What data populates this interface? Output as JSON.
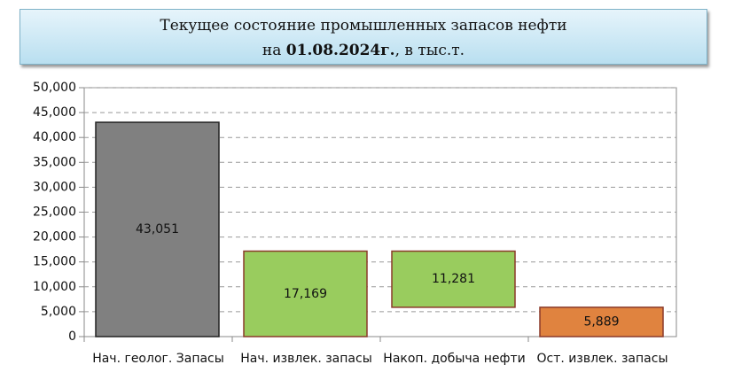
{
  "chart_data": {
    "type": "waterfall",
    "title": {
      "line1": "Текущее состояние промышленных запасов нефти",
      "prefix": "на",
      "date": "01.08.2024г.",
      "suffix": ", в тыс.т."
    },
    "categories": [
      "Нач. геолог. Запасы",
      "Нач. извлек. запасы",
      "Накоп. добыча нефти",
      "Ост. извлек. запасы"
    ],
    "measures": [
      "total",
      "total",
      "decrease",
      "total"
    ],
    "values": [
      43051,
      17169,
      11281,
      5889
    ],
    "value_labels": [
      "43,051",
      "17,169",
      "11,281",
      "5,889"
    ],
    "colors": [
      "#808080",
      "#99cc5e",
      "#99cc5e",
      "#e0833f"
    ],
    "edge_colors": [
      "#222222",
      "#8b3a2a",
      "#8b3a2a",
      "#8b3a2a"
    ],
    "ylim": [
      0,
      50000
    ],
    "yticks": [
      0,
      {
        "value": 5000,
        "label": "5,000"
      },
      {
        "value": 10000,
        "label": "10,000"
      },
      {
        "value": 15000,
        "label": "15,000"
      },
      {
        "value": 20000,
        "label": "20,000"
      },
      {
        "value": 25000,
        "label": "25,000"
      },
      {
        "value": 30000,
        "label": "30,000"
      },
      {
        "value": 35000,
        "label": "35,000"
      },
      {
        "value": 40000,
        "label": "40,000"
      },
      {
        "value": 45000,
        "label": "45,000"
      },
      {
        "value": 50000,
        "label": "50,000"
      }
    ],
    "grid": true
  }
}
